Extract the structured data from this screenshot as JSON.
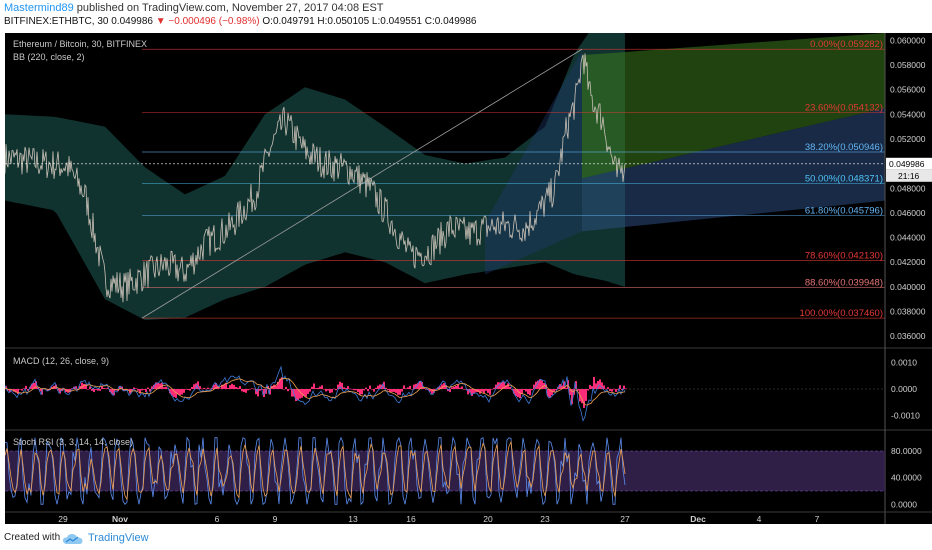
{
  "header": {
    "author": "Mastermind89",
    "published": "published on TradingView.com, November 27, 2017 04:08 EST",
    "symbol": "BITFINEX:ETHBTC, 30",
    "last": "0.049986",
    "change": "▼ −0.000496 (−0.98%)",
    "ohlc": "O:0.049791 H:0.050105 L:0.049551 C:0.049986"
  },
  "legend": {
    "title": "Ethereum / Bitcoin, 30, BITFINEX",
    "bb": "BB (220, close, 2)",
    "macd": "MACD (12, 26, close, 9)",
    "stoch": "Stoch RSI (3, 3, 14, 14, close)"
  },
  "price_scale": [
    "0.060000",
    "0.058000",
    "0.056000",
    "0.054000",
    "0.052000",
    "0.050000",
    "0.048000",
    "0.046000",
    "0.044000",
    "0.042000",
    "0.040000",
    "0.038000",
    "0.036000"
  ],
  "price_range": [
    0.0352,
    0.0606
  ],
  "last_price": "0.049986",
  "countdown": "21:16",
  "macd_scale": [
    "0.0010",
    "0.0000",
    "-0.0010"
  ],
  "macd_range": [
    -0.0015,
    0.0015
  ],
  "stoch_scale": [
    "80.0000",
    "40.0000",
    "0.0000"
  ],
  "stoch_range": [
    -10,
    110
  ],
  "x_labels": [
    "29",
    "Nov",
    "6",
    "9",
    "13",
    "16",
    "20",
    "23",
    "27",
    "Dec",
    "4",
    "7"
  ],
  "x_label_bold": [
    "Nov",
    "Dec"
  ],
  "fib_levels": [
    {
      "label": "0.00%(0.059282)",
      "value": 0.059282,
      "color": "#e53935"
    },
    {
      "label": "23.60%(0.054132)",
      "value": 0.054132,
      "color": "#e53935"
    },
    {
      "label": "38.20%(0.050946)",
      "value": 0.050946,
      "color": "#64b5f6"
    },
    {
      "label": "50.00%(0.048371)",
      "value": 0.048371,
      "color": "#4fc3f7"
    },
    {
      "label": "61.80%(0.045796)",
      "value": 0.045796,
      "color": "#64b5f6"
    },
    {
      "label": "78.60%(0.042130)",
      "value": 0.04213,
      "color": "#e53935"
    },
    {
      "label": "88.60%(0.039948)",
      "value": 0.039948,
      "color": "#e57373"
    },
    {
      "label": "100.00%(0.037460)",
      "value": 0.03746,
      "color": "#e53935"
    }
  ],
  "footer": {
    "created": "Created with",
    "brand": "TradingView"
  },
  "colors": {
    "background": "#000000",
    "price_line": "#c9c1b7",
    "bb_fill": "#1f5c56",
    "macd": "#3d7bd8",
    "signal": "#f0a050",
    "hist": "#ff2d78",
    "stoch_k": "#5b8def",
    "stoch_d": "#f0a050",
    "stoch_band": "#3b2558"
  }
}
